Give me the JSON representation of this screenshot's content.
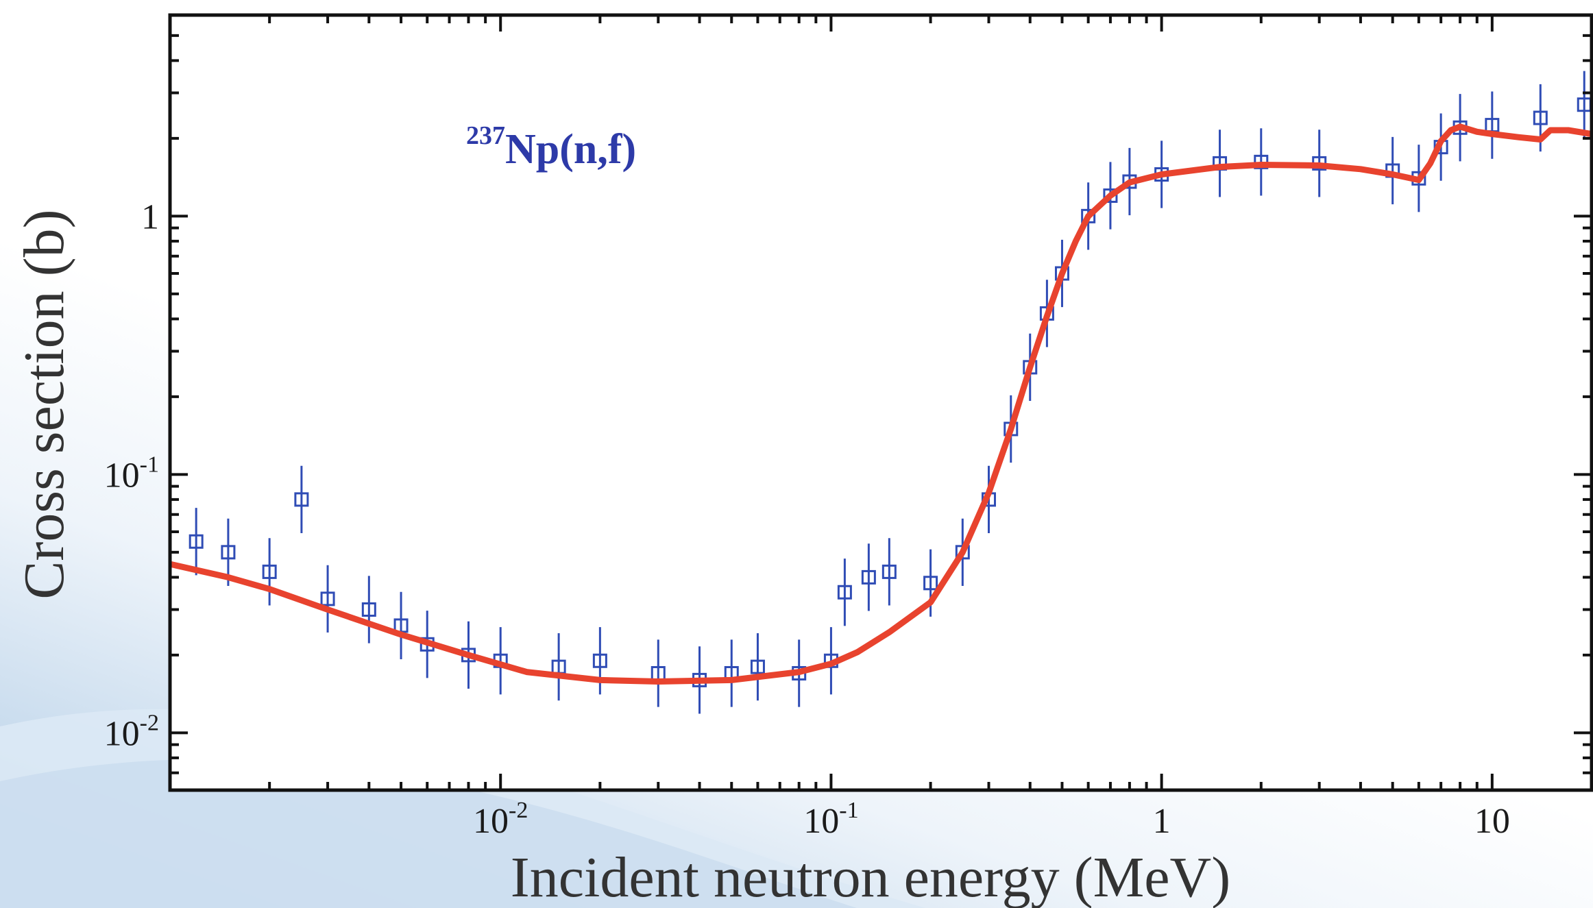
{
  "chart_data": {
    "type": "scatter",
    "title": "",
    "xlabel": "Incident neutron energy (MeV)",
    "ylabel": "Cross section (b)",
    "x_scale": "log",
    "y_scale": "log",
    "xlim": [
      0.001,
      20
    ],
    "ylim": [
      0.006,
      6
    ],
    "x_ticks": [
      {
        "value": 0.01,
        "base": "10",
        "exp": "-2"
      },
      {
        "value": 0.1,
        "base": "10",
        "exp": "-1"
      },
      {
        "value": 1,
        "base": "1",
        "exp": ""
      },
      {
        "value": 10,
        "base": "10",
        "exp": ""
      }
    ],
    "y_ticks": [
      {
        "value": 0.01,
        "base": "10",
        "exp": "-2"
      },
      {
        "value": 0.1,
        "base": "10",
        "exp": "-1"
      },
      {
        "value": 1,
        "base": "1",
        "exp": ""
      }
    ],
    "annotation": {
      "mass": "237",
      "text": "Np(n,f)"
    },
    "grid": false,
    "colors": {
      "data": "#2f4cb5",
      "evaluation": "#e8432e",
      "frame": "#111111",
      "annotation": "#2d3aa8"
    },
    "series": [
      {
        "kind": "evaluation-curve",
        "x": [
          0.001,
          0.0015,
          0.002,
          0.003,
          0.005,
          0.008,
          0.012,
          0.02,
          0.03,
          0.05,
          0.08,
          0.1,
          0.12,
          0.15,
          0.2,
          0.25,
          0.3,
          0.35,
          0.4,
          0.45,
          0.5,
          0.55,
          0.6,
          0.7,
          0.8,
          1.0,
          1.5,
          2.0,
          3.0,
          4.0,
          5.0,
          6.0,
          6.5,
          7.0,
          7.5,
          8.0,
          9.0,
          10.0,
          12.0,
          14.0,
          15.0,
          17.0,
          20.0
        ],
        "y": [
          0.045,
          0.04,
          0.036,
          0.03,
          0.024,
          0.02,
          0.0172,
          0.016,
          0.0158,
          0.016,
          0.0172,
          0.0185,
          0.0205,
          0.0245,
          0.032,
          0.05,
          0.085,
          0.15,
          0.26,
          0.41,
          0.6,
          0.8,
          1.0,
          1.2,
          1.35,
          1.45,
          1.55,
          1.58,
          1.57,
          1.52,
          1.45,
          1.38,
          1.6,
          1.95,
          2.15,
          2.22,
          2.12,
          2.08,
          2.02,
          1.98,
          2.15,
          2.15,
          2.08
        ]
      },
      {
        "kind": "experimental-data",
        "x": [
          0.0012,
          0.0015,
          0.002,
          0.0025,
          0.003,
          0.004,
          0.005,
          0.006,
          0.008,
          0.01,
          0.015,
          0.02,
          0.03,
          0.04,
          0.05,
          0.06,
          0.08,
          0.1,
          0.11,
          0.13,
          0.15,
          0.2,
          0.25,
          0.3,
          0.35,
          0.4,
          0.45,
          0.5,
          0.6,
          0.7,
          0.8,
          1.0,
          1.5,
          2.0,
          3.0,
          5.0,
          6.0,
          7.0,
          8.0,
          10.0,
          14.0,
          19.0
        ],
        "y": [
          0.055,
          0.05,
          0.042,
          0.08,
          0.033,
          0.03,
          0.026,
          0.022,
          0.02,
          0.019,
          0.018,
          0.019,
          0.017,
          0.016,
          0.017,
          0.018,
          0.017,
          0.019,
          0.035,
          0.04,
          0.042,
          0.038,
          0.05,
          0.08,
          0.15,
          0.26,
          0.42,
          0.6,
          1.0,
          1.2,
          1.36,
          1.45,
          1.6,
          1.62,
          1.6,
          1.5,
          1.4,
          1.85,
          2.2,
          2.25,
          2.4,
          2.7
        ]
      }
    ]
  }
}
